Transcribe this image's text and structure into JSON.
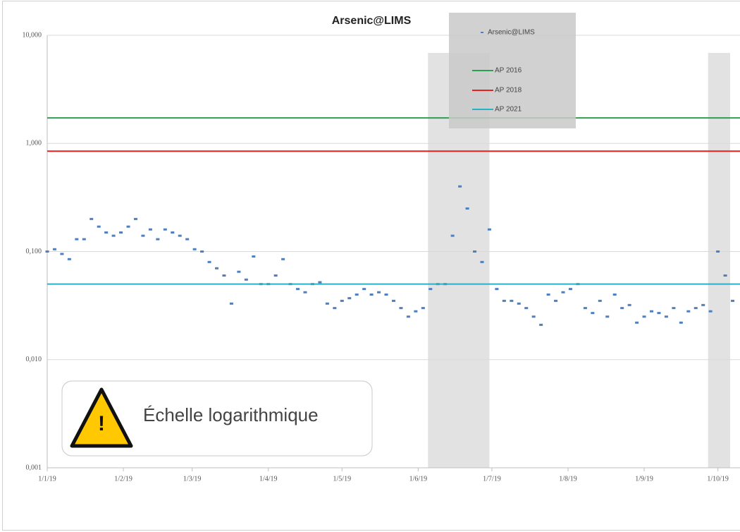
{
  "chart_data": {
    "type": "scatter",
    "title": "Arsenic@LIMS",
    "log_scale": true,
    "grid": true,
    "ylim": [
      0.001,
      10
    ],
    "yticks": [
      {
        "value": 0.001,
        "label": "0,001"
      },
      {
        "value": 0.01,
        "label": "0,010"
      },
      {
        "value": 0.1,
        "label": "0,100"
      },
      {
        "value": 1,
        "label": "1,000"
      },
      {
        "value": 10,
        "label": "10,000"
      }
    ],
    "xlim": [
      "2019-01-01",
      "2019-10-10"
    ],
    "xticks": [
      {
        "value": "2019-01-01",
        "label": "1/1/19"
      },
      {
        "value": "2019-02-01",
        "label": "1/2/19"
      },
      {
        "value": "2019-03-01",
        "label": "1/3/19"
      },
      {
        "value": "2019-04-01",
        "label": "1/4/19"
      },
      {
        "value": "2019-05-01",
        "label": "1/5/19"
      },
      {
        "value": "2019-06-01",
        "label": "1/6/19"
      },
      {
        "value": "2019-07-01",
        "label": "1/7/19"
      },
      {
        "value": "2019-08-01",
        "label": "1/8/19"
      },
      {
        "value": "2019-09-01",
        "label": "1/9/19"
      },
      {
        "value": "2019-10-01",
        "label": "1/10/19"
      }
    ],
    "shaded_periods": [
      {
        "start": "2019-06-05",
        "end": "2019-06-30"
      },
      {
        "start": "2019-09-27",
        "end": "2019-10-06"
      }
    ],
    "series": [
      {
        "name": "Arsenic@LIMS",
        "type": "scatter",
        "color": "#4f7fbf",
        "x": [
          "2019-01-01",
          "2019-01-04",
          "2019-01-07",
          "2019-01-10",
          "2019-01-13",
          "2019-01-16",
          "2019-01-19",
          "2019-01-22",
          "2019-01-25",
          "2019-01-28",
          "2019-01-31",
          "2019-02-03",
          "2019-02-06",
          "2019-02-09",
          "2019-02-12",
          "2019-02-15",
          "2019-02-18",
          "2019-02-21",
          "2019-02-24",
          "2019-02-27",
          "2019-03-02",
          "2019-03-05",
          "2019-03-08",
          "2019-03-11",
          "2019-03-14",
          "2019-03-17",
          "2019-03-20",
          "2019-03-23",
          "2019-03-26",
          "2019-03-29",
          "2019-04-01",
          "2019-04-04",
          "2019-04-07",
          "2019-04-10",
          "2019-04-13",
          "2019-04-16",
          "2019-04-19",
          "2019-04-22",
          "2019-04-25",
          "2019-04-28",
          "2019-05-01",
          "2019-05-04",
          "2019-05-07",
          "2019-05-10",
          "2019-05-13",
          "2019-05-16",
          "2019-05-19",
          "2019-05-22",
          "2019-05-25",
          "2019-05-28",
          "2019-05-31",
          "2019-06-03",
          "2019-06-06",
          "2019-06-09",
          "2019-06-12",
          "2019-06-15",
          "2019-06-18",
          "2019-06-21",
          "2019-06-24",
          "2019-06-27",
          "2019-06-30",
          "2019-07-03",
          "2019-07-06",
          "2019-07-09",
          "2019-07-12",
          "2019-07-15",
          "2019-07-18",
          "2019-07-21",
          "2019-07-24",
          "2019-07-27",
          "2019-07-30",
          "2019-08-02",
          "2019-08-05",
          "2019-08-08",
          "2019-08-11",
          "2019-08-14",
          "2019-08-17",
          "2019-08-20",
          "2019-08-23",
          "2019-08-26",
          "2019-08-29",
          "2019-09-01",
          "2019-09-04",
          "2019-09-07",
          "2019-09-10",
          "2019-09-13",
          "2019-09-16",
          "2019-09-19",
          "2019-09-22",
          "2019-09-25",
          "2019-09-28",
          "2019-10-01",
          "2019-10-04",
          "2019-10-07"
        ],
        "values": [
          0.1,
          0.105,
          0.095,
          0.085,
          0.13,
          0.13,
          0.2,
          0.17,
          0.15,
          0.14,
          0.15,
          0.17,
          0.2,
          0.14,
          0.16,
          0.13,
          0.16,
          0.15,
          0.14,
          0.13,
          0.105,
          0.1,
          0.08,
          0.07,
          0.06,
          0.033,
          0.065,
          0.055,
          0.09,
          0.05,
          0.05,
          0.06,
          0.085,
          0.05,
          0.045,
          0.042,
          0.05,
          0.052,
          0.033,
          0.03,
          0.035,
          0.037,
          0.04,
          0.045,
          0.04,
          0.042,
          0.04,
          0.035,
          0.03,
          0.025,
          0.028,
          0.03,
          0.045,
          0.05,
          0.05,
          0.14,
          0.4,
          0.25,
          0.1,
          0.08,
          0.16,
          0.045,
          0.035,
          0.035,
          0.033,
          0.03,
          0.025,
          0.021,
          0.04,
          0.035,
          0.042,
          0.045,
          0.05,
          0.03,
          0.027,
          0.035,
          0.025,
          0.04,
          0.03,
          0.032,
          0.022,
          0.025,
          0.028,
          0.027,
          0.025,
          0.03,
          0.022,
          0.028,
          0.03,
          0.032,
          0.028,
          0.1,
          0.06,
          0.035
        ]
      },
      {
        "name": "AP 2016",
        "type": "hline",
        "color": "#2e9e4f",
        "value": 1.72
      },
      {
        "name": "AP 2018",
        "type": "hline",
        "color": "#e8211c",
        "value": 0.847
      },
      {
        "name": "AP 2021",
        "type": "hline",
        "color": "#27b2c9",
        "value": 0.05
      }
    ],
    "annotation": {
      "icon": "!",
      "text": "Échelle logarithmique"
    }
  }
}
